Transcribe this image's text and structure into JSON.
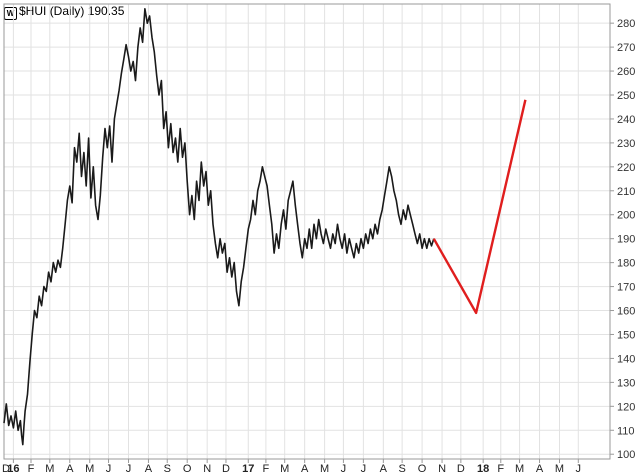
{
  "chart_data": {
    "type": "line",
    "symbol": "$HUI",
    "period": "(Daily)",
    "last_value": "190.35",
    "ylim": [
      98,
      288
    ],
    "y_ticks": [
      100,
      110,
      120,
      130,
      140,
      150,
      160,
      170,
      180,
      190,
      200,
      210,
      220,
      230,
      240,
      250,
      260,
      270,
      280
    ],
    "x_range": [
      2015.97,
      2018.55
    ],
    "x_ticks": [
      {
        "label": "D",
        "x": 2015.96,
        "bold": false
      },
      {
        "label": "16",
        "x": 2016.01,
        "bold": true
      },
      {
        "label": "F",
        "x": 2016.085,
        "bold": false
      },
      {
        "label": "M",
        "x": 2016.165,
        "bold": false
      },
      {
        "label": "A",
        "x": 2016.25,
        "bold": false
      },
      {
        "label": "M",
        "x": 2016.335,
        "bold": false
      },
      {
        "label": "J",
        "x": 2016.415,
        "bold": false
      },
      {
        "label": "J",
        "x": 2016.5,
        "bold": false
      },
      {
        "label": "A",
        "x": 2016.585,
        "bold": false
      },
      {
        "label": "S",
        "x": 2016.665,
        "bold": false
      },
      {
        "label": "O",
        "x": 2016.75,
        "bold": false
      },
      {
        "label": "N",
        "x": 2016.835,
        "bold": false
      },
      {
        "label": "D",
        "x": 2016.915,
        "bold": false
      },
      {
        "label": "17",
        "x": 2017.01,
        "bold": true
      },
      {
        "label": "F",
        "x": 2017.085,
        "bold": false
      },
      {
        "label": "M",
        "x": 2017.165,
        "bold": false
      },
      {
        "label": "A",
        "x": 2017.25,
        "bold": false
      },
      {
        "label": "M",
        "x": 2017.335,
        "bold": false
      },
      {
        "label": "J",
        "x": 2017.415,
        "bold": false
      },
      {
        "label": "J",
        "x": 2017.5,
        "bold": false
      },
      {
        "label": "A",
        "x": 2017.585,
        "bold": false
      },
      {
        "label": "S",
        "x": 2017.665,
        "bold": false
      },
      {
        "label": "O",
        "x": 2017.75,
        "bold": false
      },
      {
        "label": "N",
        "x": 2017.835,
        "bold": false
      },
      {
        "label": "D",
        "x": 2017.915,
        "bold": false
      },
      {
        "label": "18",
        "x": 2018.01,
        "bold": true
      },
      {
        "label": "F",
        "x": 2018.085,
        "bold": false
      },
      {
        "label": "M",
        "x": 2018.165,
        "bold": false
      },
      {
        "label": "A",
        "x": 2018.25,
        "bold": false
      },
      {
        "label": "M",
        "x": 2018.335,
        "bold": false
      },
      {
        "label": "J",
        "x": 2018.415,
        "bold": false
      }
    ],
    "grid": true,
    "series": [
      {
        "color": "#1a1a1a",
        "values": [
          [
            2015.97,
            113
          ],
          [
            2015.98,
            121
          ],
          [
            2015.99,
            112
          ],
          [
            2016.0,
            116
          ],
          [
            2016.01,
            111
          ],
          [
            2016.02,
            118
          ],
          [
            2016.03,
            110
          ],
          [
            2016.04,
            114
          ],
          [
            2016.045,
            108
          ],
          [
            2016.05,
            104
          ],
          [
            2016.055,
            112
          ],
          [
            2016.06,
            118
          ],
          [
            2016.07,
            125
          ],
          [
            2016.08,
            138
          ],
          [
            2016.09,
            150
          ],
          [
            2016.1,
            160
          ],
          [
            2016.11,
            157
          ],
          [
            2016.12,
            166
          ],
          [
            2016.13,
            162
          ],
          [
            2016.14,
            170
          ],
          [
            2016.15,
            168
          ],
          [
            2016.16,
            176
          ],
          [
            2016.17,
            172
          ],
          [
            2016.18,
            180
          ],
          [
            2016.19,
            176
          ],
          [
            2016.2,
            181
          ],
          [
            2016.21,
            178
          ],
          [
            2016.22,
            186
          ],
          [
            2016.23,
            196
          ],
          [
            2016.24,
            206
          ],
          [
            2016.25,
            212
          ],
          [
            2016.26,
            205
          ],
          [
            2016.27,
            228
          ],
          [
            2016.28,
            222
          ],
          [
            2016.29,
            234
          ],
          [
            2016.3,
            216
          ],
          [
            2016.31,
            226
          ],
          [
            2016.32,
            212
          ],
          [
            2016.33,
            232
          ],
          [
            2016.34,
            207
          ],
          [
            2016.35,
            220
          ],
          [
            2016.36,
            204
          ],
          [
            2016.37,
            198
          ],
          [
            2016.38,
            208
          ],
          [
            2016.39,
            224
          ],
          [
            2016.4,
            236
          ],
          [
            2016.41,
            228
          ],
          [
            2016.42,
            237
          ],
          [
            2016.43,
            222
          ],
          [
            2016.44,
            240
          ],
          [
            2016.45,
            246
          ],
          [
            2016.46,
            252
          ],
          [
            2016.47,
            259
          ],
          [
            2016.48,
            265
          ],
          [
            2016.49,
            271
          ],
          [
            2016.5,
            266
          ],
          [
            2016.51,
            260
          ],
          [
            2016.52,
            264
          ],
          [
            2016.53,
            256
          ],
          [
            2016.54,
            270
          ],
          [
            2016.55,
            278
          ],
          [
            2016.56,
            272
          ],
          [
            2016.57,
            286
          ],
          [
            2016.58,
            280
          ],
          [
            2016.59,
            283
          ],
          [
            2016.6,
            274
          ],
          [
            2016.61,
            268
          ],
          [
            2016.62,
            258
          ],
          [
            2016.63,
            250
          ],
          [
            2016.64,
            256
          ],
          [
            2016.65,
            236
          ],
          [
            2016.66,
            243
          ],
          [
            2016.67,
            228
          ],
          [
            2016.68,
            238
          ],
          [
            2016.69,
            226
          ],
          [
            2016.7,
            232
          ],
          [
            2016.71,
            222
          ],
          [
            2016.72,
            236
          ],
          [
            2016.73,
            224
          ],
          [
            2016.74,
            230
          ],
          [
            2016.75,
            214
          ],
          [
            2016.76,
            200
          ],
          [
            2016.77,
            208
          ],
          [
            2016.78,
            198
          ],
          [
            2016.79,
            214
          ],
          [
            2016.8,
            206
          ],
          [
            2016.81,
            222
          ],
          [
            2016.82,
            212
          ],
          [
            2016.83,
            218
          ],
          [
            2016.84,
            204
          ],
          [
            2016.85,
            210
          ],
          [
            2016.86,
            196
          ],
          [
            2016.87,
            188
          ],
          [
            2016.88,
            182
          ],
          [
            2016.89,
            190
          ],
          [
            2016.9,
            184
          ],
          [
            2016.91,
            188
          ],
          [
            2016.92,
            176
          ],
          [
            2016.93,
            182
          ],
          [
            2016.94,
            174
          ],
          [
            2016.95,
            180
          ],
          [
            2016.96,
            168
          ],
          [
            2016.97,
            162
          ],
          [
            2016.98,
            172
          ],
          [
            2016.99,
            178
          ],
          [
            2017.0,
            186
          ],
          [
            2017.01,
            194
          ],
          [
            2017.02,
            198
          ],
          [
            2017.03,
            206
          ],
          [
            2017.04,
            200
          ],
          [
            2017.05,
            210
          ],
          [
            2017.06,
            214
          ],
          [
            2017.07,
            220
          ],
          [
            2017.08,
            216
          ],
          [
            2017.09,
            212
          ],
          [
            2017.1,
            204
          ],
          [
            2017.11,
            196
          ],
          [
            2017.12,
            184
          ],
          [
            2017.13,
            192
          ],
          [
            2017.14,
            186
          ],
          [
            2017.15,
            196
          ],
          [
            2017.16,
            202
          ],
          [
            2017.17,
            194
          ],
          [
            2017.18,
            206
          ],
          [
            2017.19,
            210
          ],
          [
            2017.2,
            214
          ],
          [
            2017.21,
            204
          ],
          [
            2017.22,
            196
          ],
          [
            2017.23,
            188
          ],
          [
            2017.24,
            182
          ],
          [
            2017.25,
            190
          ],
          [
            2017.26,
            186
          ],
          [
            2017.27,
            194
          ],
          [
            2017.28,
            186
          ],
          [
            2017.29,
            196
          ],
          [
            2017.3,
            190
          ],
          [
            2017.31,
            198
          ],
          [
            2017.32,
            192
          ],
          [
            2017.33,
            188
          ],
          [
            2017.34,
            194
          ],
          [
            2017.35,
            190
          ],
          [
            2017.36,
            186
          ],
          [
            2017.37,
            192
          ],
          [
            2017.38,
            188
          ],
          [
            2017.39,
            196
          ],
          [
            2017.4,
            190
          ],
          [
            2017.41,
            186
          ],
          [
            2017.42,
            192
          ],
          [
            2017.43,
            184
          ],
          [
            2017.44,
            190
          ],
          [
            2017.45,
            186
          ],
          [
            2017.46,
            182
          ],
          [
            2017.47,
            188
          ],
          [
            2017.48,
            184
          ],
          [
            2017.49,
            190
          ],
          [
            2017.5,
            186
          ],
          [
            2017.51,
            192
          ],
          [
            2017.52,
            188
          ],
          [
            2017.53,
            194
          ],
          [
            2017.54,
            190
          ],
          [
            2017.55,
            196
          ],
          [
            2017.56,
            192
          ],
          [
            2017.57,
            198
          ],
          [
            2017.58,
            202
          ],
          [
            2017.59,
            208
          ],
          [
            2017.6,
            214
          ],
          [
            2017.61,
            220
          ],
          [
            2017.62,
            216
          ],
          [
            2017.63,
            210
          ],
          [
            2017.64,
            206
          ],
          [
            2017.65,
            200
          ],
          [
            2017.66,
            196
          ],
          [
            2017.67,
            202
          ],
          [
            2017.68,
            198
          ],
          [
            2017.69,
            204
          ],
          [
            2017.7,
            200
          ],
          [
            2017.71,
            196
          ],
          [
            2017.72,
            192
          ],
          [
            2017.73,
            188
          ],
          [
            2017.74,
            192
          ],
          [
            2017.75,
            186
          ],
          [
            2017.76,
            190
          ],
          [
            2017.77,
            186
          ],
          [
            2017.78,
            190
          ],
          [
            2017.79,
            187
          ],
          [
            2017.8,
            190
          ]
        ]
      },
      {
        "color": "#e01e1e",
        "values": [
          [
            2017.8,
            190
          ],
          [
            2017.98,
            159
          ],
          [
            2018.19,
            248
          ]
        ]
      }
    ]
  }
}
